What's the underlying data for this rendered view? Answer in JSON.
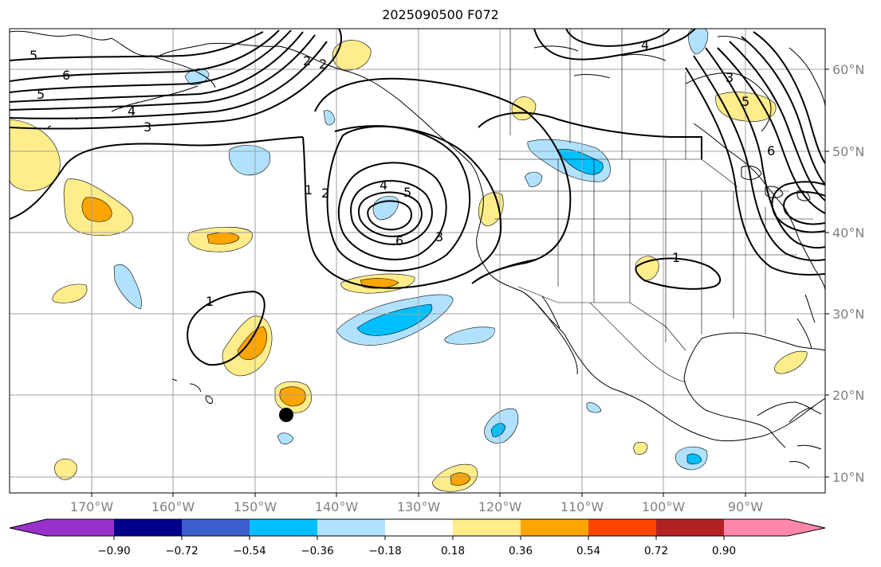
{
  "title": "2025090500 F072",
  "lon_labels": [
    "170°W",
    "160°W",
    "150°W",
    "140°W",
    "130°W",
    "120°W",
    "110°W",
    "100°W",
    "90°W"
  ],
  "lat_labels": [
    "60°N",
    "50°N",
    "40°N",
    "30°N",
    "20°N",
    "10°N"
  ],
  "colorbar": {
    "tick_labels": [
      "−0.90",
      "−0.72",
      "−0.54",
      "−0.36",
      "−0.18",
      "0.18",
      "0.36",
      "0.54",
      "0.72",
      "0.90"
    ],
    "colors": [
      "#9932cc",
      "#00008b",
      "#3a5fcd",
      "#00bfff",
      "#b0e2ff",
      "#ffffff",
      "#ffec8b",
      "#ffa500",
      "#ff4500",
      "#b22222",
      "#ff88aa"
    ]
  },
  "contour_labels": [
    "5",
    "6",
    "5",
    "4",
    "3",
    "2",
    "2",
    "1",
    "2",
    "4",
    "5",
    "6",
    "3",
    "4",
    "3",
    "5",
    "6",
    "1",
    "1"
  ],
  "colors": {
    "pos_light": "#ffec8b",
    "pos_mid": "#ffa500",
    "neg_light": "#b0e2ff",
    "neg_mid": "#00bfff",
    "gridline": "#a0a0a0"
  }
}
